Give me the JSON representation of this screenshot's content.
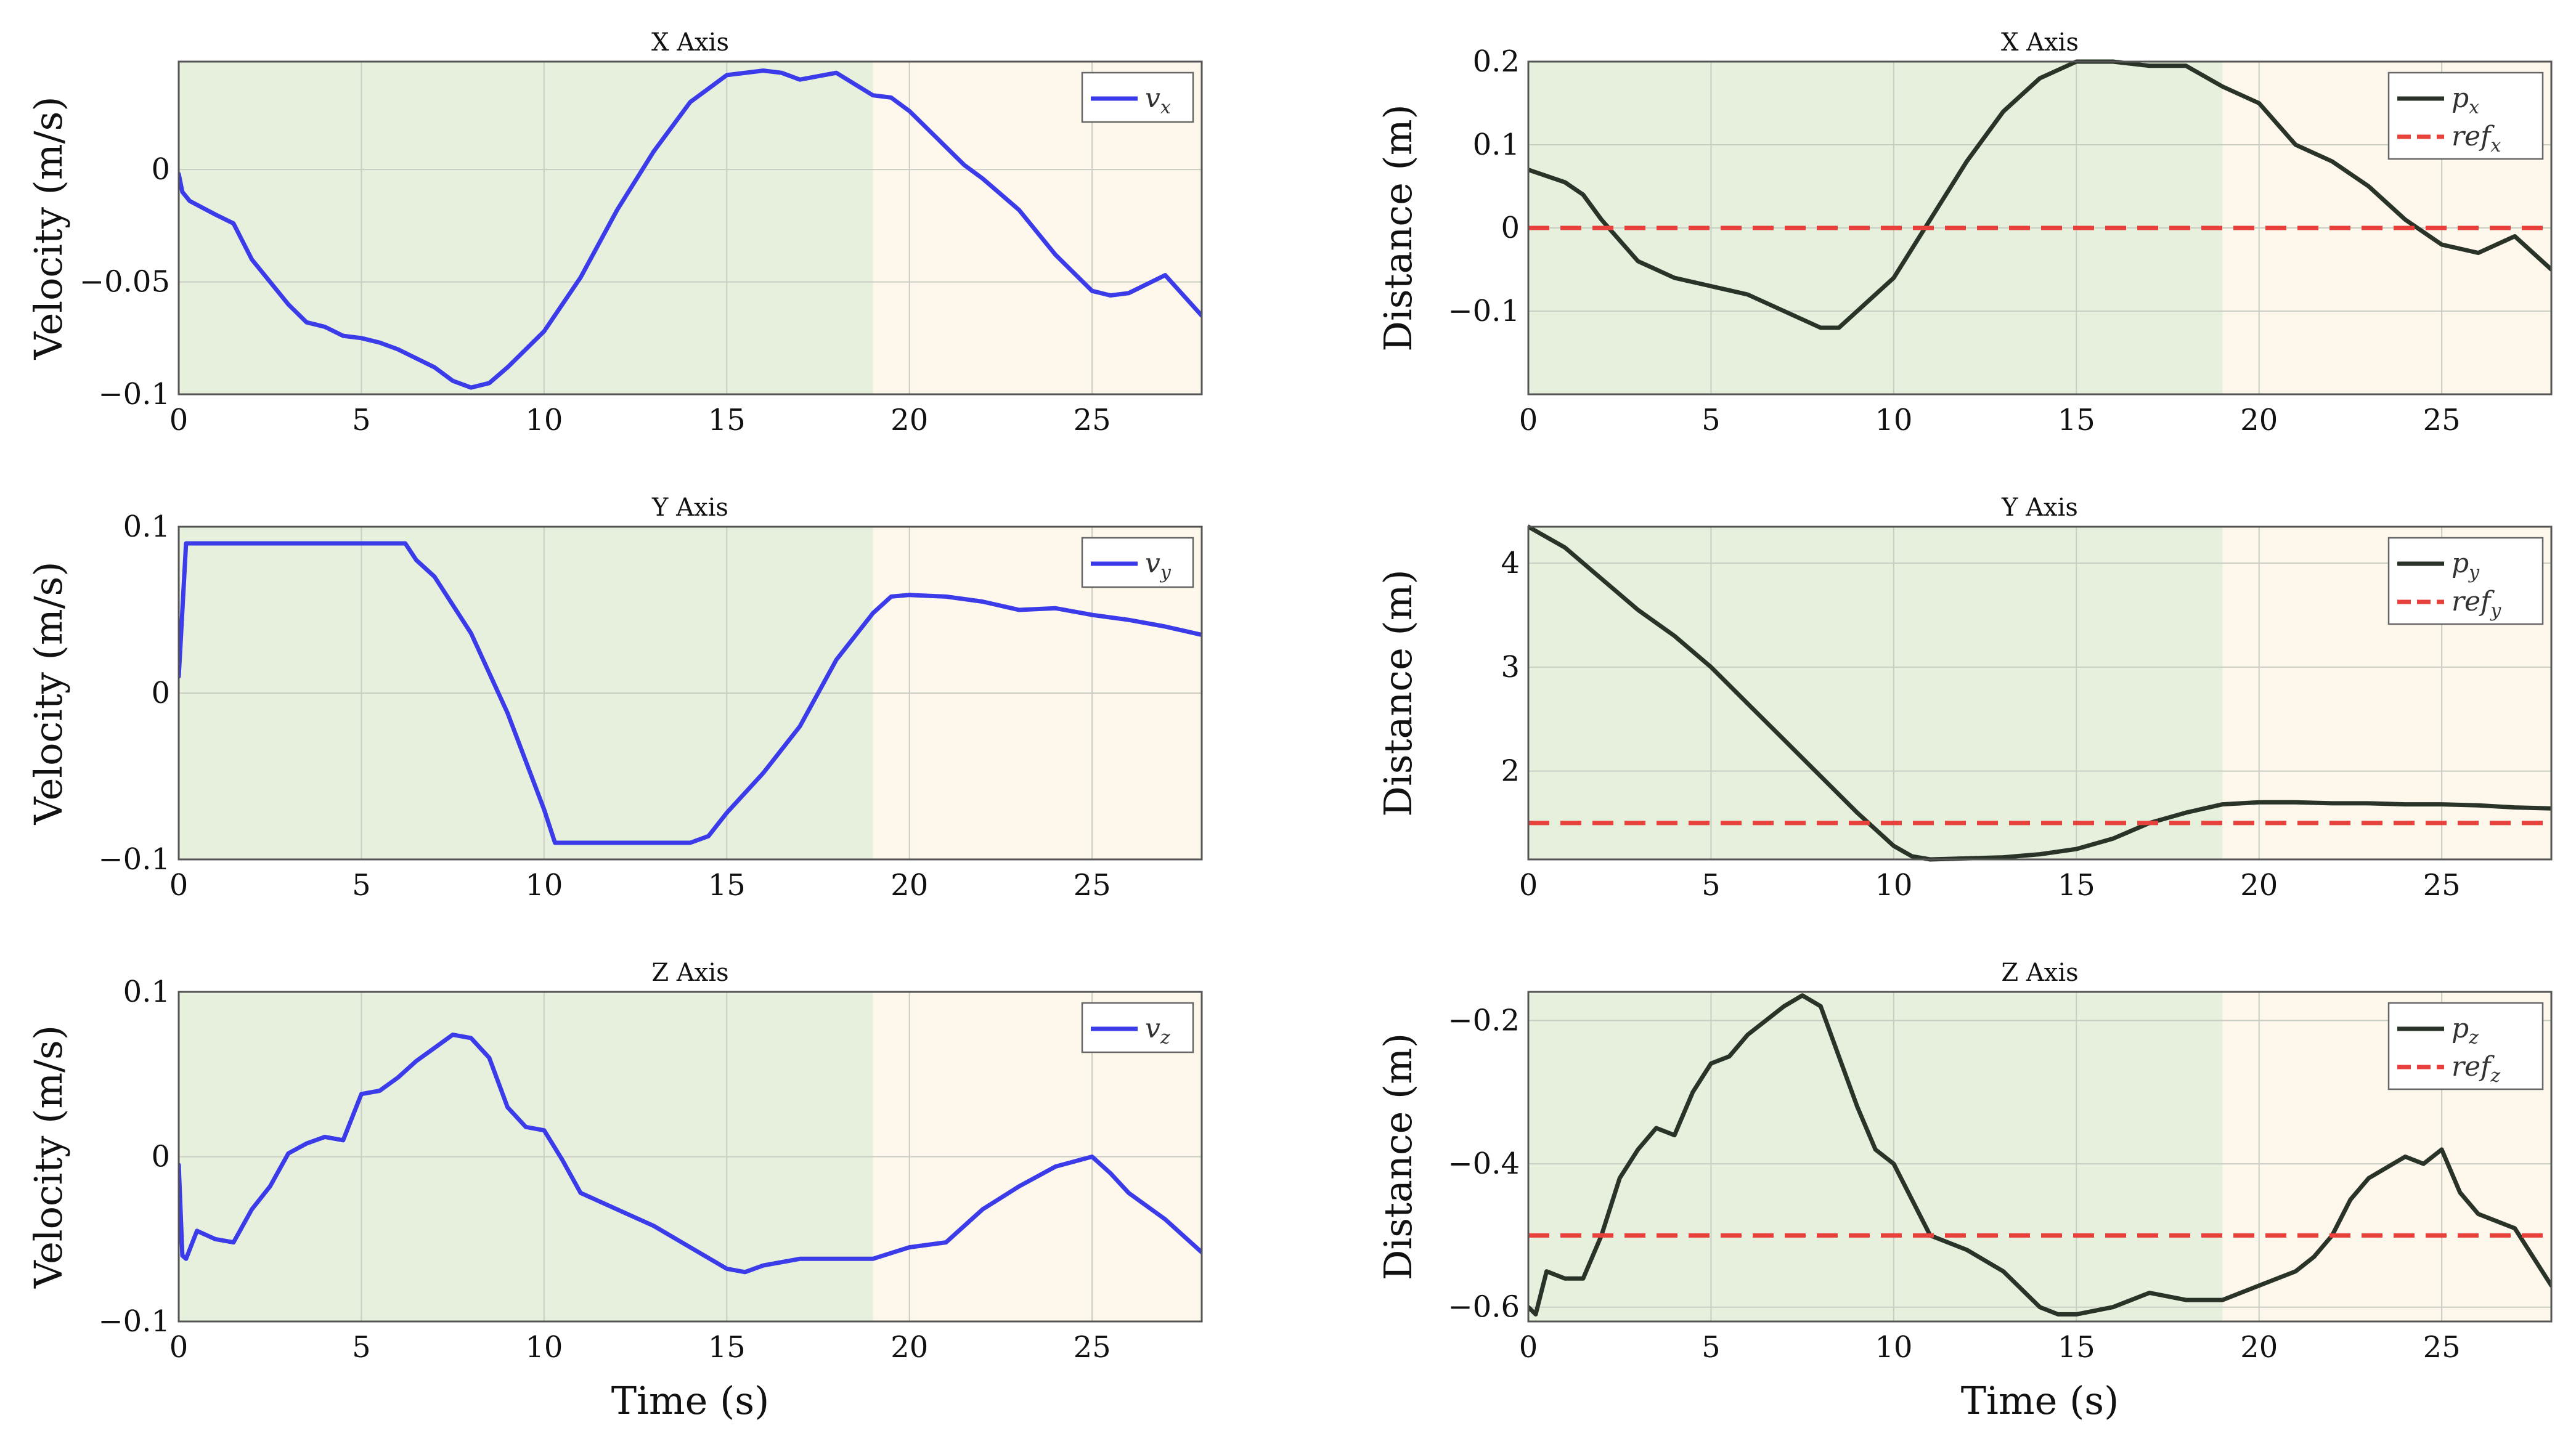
{
  "colors": {
    "velocity_line": "#3b3bea",
    "position_line": "#2a3328",
    "reference_line": "#e8403a",
    "phase1_bg": "#e6f0dd",
    "phase2_bg": "#fdf8eb"
  },
  "phase_boundaries": [
    0,
    19,
    28
  ],
  "x_ticks": [
    "0",
    "5",
    "10",
    "15",
    "20",
    "25"
  ],
  "chart_data": [
    {
      "id": "vel-x",
      "type": "line",
      "title": "X Axis",
      "xlabel": "",
      "ylabel": "Velocity (m/s)",
      "xlim": [
        0,
        28
      ],
      "ylim": [
        -0.1,
        0.048
      ],
      "y_ticks": [
        {
          "v": 0,
          "label": "0"
        },
        {
          "v": -0.05,
          "label": "−0.05"
        },
        {
          "v": -0.1,
          "label": "−0.1"
        }
      ],
      "legend_position": "top-right",
      "series": [
        {
          "name": "v",
          "sub": "x",
          "style": "solid",
          "color_key": "velocity_line",
          "x": [
            0,
            0.1,
            0.3,
            1,
            1.5,
            2,
            3,
            3.5,
            4,
            4.5,
            5,
            5.5,
            6,
            6.5,
            7,
            7.5,
            8,
            8.5,
            9,
            10,
            11,
            12,
            13,
            14,
            15,
            16,
            16.5,
            17,
            18,
            18.5,
            19,
            19.5,
            20,
            21,
            21.5,
            22,
            23,
            24,
            25,
            25.5,
            26,
            27,
            28
          ],
          "y": [
            -0.002,
            -0.01,
            -0.014,
            -0.02,
            -0.024,
            -0.04,
            -0.06,
            -0.068,
            -0.07,
            -0.074,
            -0.075,
            -0.077,
            -0.08,
            -0.084,
            -0.088,
            -0.094,
            -0.097,
            -0.095,
            -0.088,
            -0.072,
            -0.048,
            -0.018,
            0.008,
            0.03,
            0.042,
            0.044,
            0.043,
            0.04,
            0.043,
            0.038,
            0.033,
            0.032,
            0.026,
            0.01,
            0.002,
            -0.004,
            -0.018,
            -0.038,
            -0.054,
            -0.056,
            -0.055,
            -0.047,
            -0.065
          ]
        }
      ]
    },
    {
      "id": "vel-y",
      "type": "line",
      "title": "Y Axis",
      "xlabel": "",
      "ylabel": "Velocity (m/s)",
      "xlim": [
        0,
        28
      ],
      "ylim": [
        -0.1,
        0.1
      ],
      "y_ticks": [
        {
          "v": 0.1,
          "label": "0.1"
        },
        {
          "v": 0,
          "label": "0"
        },
        {
          "v": -0.1,
          "label": "−0.1"
        }
      ],
      "legend_position": "top-right",
      "series": [
        {
          "name": "v",
          "sub": "y",
          "style": "solid",
          "color_key": "velocity_line",
          "x": [
            0,
            0.05,
            0.2,
            6.2,
            6.5,
            7,
            8,
            9,
            10,
            10.3,
            14,
            14.5,
            15,
            16,
            17,
            18,
            19,
            19.5,
            20,
            21,
            22,
            23,
            24,
            25,
            26,
            27,
            28
          ],
          "y": [
            0.01,
            0.03,
            0.09,
            0.09,
            0.08,
            0.07,
            0.036,
            -0.012,
            -0.07,
            -0.09,
            -0.09,
            -0.086,
            -0.072,
            -0.048,
            -0.02,
            0.02,
            0.048,
            0.058,
            0.059,
            0.058,
            0.055,
            0.05,
            0.051,
            0.047,
            0.044,
            0.04,
            0.035
          ]
        }
      ]
    },
    {
      "id": "vel-z",
      "type": "line",
      "title": "Z Axis",
      "xlabel": "Time (s)",
      "ylabel": "Velocity (m/s)",
      "xlim": [
        0,
        28
      ],
      "ylim": [
        -0.1,
        0.1
      ],
      "y_ticks": [
        {
          "v": 0.1,
          "label": "0.1"
        },
        {
          "v": 0,
          "label": "0"
        },
        {
          "v": -0.1,
          "label": "−0.1"
        }
      ],
      "legend_position": "top-right",
      "series": [
        {
          "name": "v",
          "sub": "z",
          "style": "solid",
          "color_key": "velocity_line",
          "x": [
            0,
            0.1,
            0.2,
            0.5,
            1,
            1.5,
            2,
            2.5,
            3,
            3.5,
            4,
            4.5,
            5,
            5.5,
            6,
            6.5,
            7,
            7.5,
            8,
            8.5,
            9,
            9.5,
            10,
            10.5,
            11,
            12,
            13,
            14,
            15,
            15.5,
            16,
            17,
            18,
            19,
            20,
            21,
            22,
            23,
            24,
            25,
            25.5,
            26,
            27,
            28
          ],
          "y": [
            -0.005,
            -0.06,
            -0.062,
            -0.045,
            -0.05,
            -0.052,
            -0.032,
            -0.018,
            0.002,
            0.008,
            0.012,
            0.01,
            0.038,
            0.04,
            0.048,
            0.058,
            0.066,
            0.074,
            0.072,
            0.06,
            0.03,
            0.018,
            0.016,
            -0.002,
            -0.022,
            -0.032,
            -0.042,
            -0.055,
            -0.068,
            -0.07,
            -0.066,
            -0.062,
            -0.062,
            -0.062,
            -0.055,
            -0.052,
            -0.032,
            -0.018,
            -0.006,
            0,
            -0.01,
            -0.022,
            -0.038,
            -0.058
          ]
        }
      ]
    },
    {
      "id": "pos-x",
      "type": "line",
      "title": "X Axis",
      "xlabel": "",
      "ylabel": "Distance (m)",
      "xlim": [
        0,
        28
      ],
      "ylim": [
        -0.2,
        0.2
      ],
      "y_ticks": [
        {
          "v": 0.2,
          "label": "0.2"
        },
        {
          "v": 0.1,
          "label": "0.1"
        },
        {
          "v": 0,
          "label": "0"
        },
        {
          "v": -0.1,
          "label": "−0.1"
        }
      ],
      "legend_position": "top-right",
      "series": [
        {
          "name": "p",
          "sub": "x",
          "style": "solid",
          "color_key": "position_line",
          "x": [
            0,
            1,
            1.5,
            2,
            3,
            4,
            5,
            6,
            7,
            8,
            8.5,
            9,
            10,
            11,
            12,
            13,
            14,
            15,
            16,
            17,
            18,
            19,
            20,
            21,
            22,
            23,
            24,
            25,
            26,
            27,
            28
          ],
          "y": [
            0.07,
            0.055,
            0.04,
            0.01,
            -0.04,
            -0.06,
            -0.07,
            -0.08,
            -0.1,
            -0.12,
            -0.12,
            -0.1,
            -0.06,
            0.01,
            0.08,
            0.14,
            0.18,
            0.2,
            0.2,
            0.195,
            0.195,
            0.17,
            0.15,
            0.1,
            0.08,
            0.05,
            0.01,
            -0.02,
            -0.03,
            -0.01,
            -0.05
          ]
        },
        {
          "name": "ref",
          "sub": "x",
          "style": "dashed",
          "color_key": "reference_line",
          "x": [
            0,
            28
          ],
          "y": [
            0,
            0
          ]
        }
      ]
    },
    {
      "id": "pos-y",
      "type": "line",
      "title": "Y Axis",
      "xlabel": "",
      "ylabel": "Distance (m)",
      "xlim": [
        0,
        28
      ],
      "ylim": [
        1.15,
        4.35
      ],
      "y_ticks": [
        {
          "v": 4,
          "label": "4"
        },
        {
          "v": 3,
          "label": "3"
        },
        {
          "v": 2,
          "label": "2"
        }
      ],
      "legend_position": "top-right",
      "series": [
        {
          "name": "p",
          "sub": "y",
          "style": "solid",
          "color_key": "position_line",
          "x": [
            0,
            1,
            2,
            3,
            4,
            5,
            6,
            7,
            8,
            9,
            10,
            10.5,
            11,
            12,
            13,
            14,
            15,
            16,
            17,
            18,
            19,
            20,
            21,
            22,
            23,
            24,
            25,
            26,
            27,
            28
          ],
          "y": [
            4.35,
            4.15,
            3.85,
            3.55,
            3.3,
            3.0,
            2.65,
            2.3,
            1.95,
            1.6,
            1.28,
            1.18,
            1.15,
            1.16,
            1.17,
            1.2,
            1.25,
            1.35,
            1.5,
            1.6,
            1.68,
            1.7,
            1.7,
            1.69,
            1.69,
            1.68,
            1.68,
            1.67,
            1.65,
            1.64
          ]
        },
        {
          "name": "ref",
          "sub": "y",
          "style": "dashed",
          "color_key": "reference_line",
          "x": [
            0,
            28
          ],
          "y": [
            1.5,
            1.5
          ]
        }
      ]
    },
    {
      "id": "pos-z",
      "type": "line",
      "title": "Z Axis",
      "xlabel": "Time (s)",
      "ylabel": "Distance (m)",
      "xlim": [
        0,
        28
      ],
      "ylim": [
        -0.62,
        -0.16
      ],
      "y_ticks": [
        {
          "v": -0.2,
          "label": "−0.2"
        },
        {
          "v": -0.4,
          "label": "−0.4"
        },
        {
          "v": -0.6,
          "label": "−0.6"
        }
      ],
      "legend_position": "top-right",
      "series": [
        {
          "name": "p",
          "sub": "z",
          "style": "solid",
          "color_key": "position_line",
          "x": [
            0,
            0.2,
            0.5,
            1,
            1.5,
            2,
            2.5,
            3,
            3.5,
            4,
            4.5,
            5,
            5.5,
            6,
            6.5,
            7,
            7.5,
            8,
            8.5,
            9,
            9.5,
            10,
            11,
            12,
            13,
            14,
            14.5,
            15,
            16,
            17,
            18,
            19,
            20,
            21,
            21.5,
            22,
            22.5,
            23,
            24,
            24.5,
            25,
            25.5,
            26,
            27,
            28
          ],
          "y": [
            -0.6,
            -0.61,
            -0.55,
            -0.56,
            -0.56,
            -0.5,
            -0.42,
            -0.38,
            -0.35,
            -0.36,
            -0.3,
            -0.26,
            -0.25,
            -0.22,
            -0.2,
            -0.18,
            -0.165,
            -0.18,
            -0.25,
            -0.32,
            -0.38,
            -0.4,
            -0.5,
            -0.52,
            -0.55,
            -0.6,
            -0.61,
            -0.61,
            -0.6,
            -0.58,
            -0.59,
            -0.59,
            -0.57,
            -0.55,
            -0.53,
            -0.5,
            -0.45,
            -0.42,
            -0.39,
            -0.4,
            -0.38,
            -0.44,
            -0.47,
            -0.49,
            -0.57
          ]
        },
        {
          "name": "ref",
          "sub": "z",
          "style": "dashed",
          "color_key": "reference_line",
          "x": [
            0,
            28
          ],
          "y": [
            -0.5,
            -0.5
          ]
        }
      ]
    }
  ]
}
